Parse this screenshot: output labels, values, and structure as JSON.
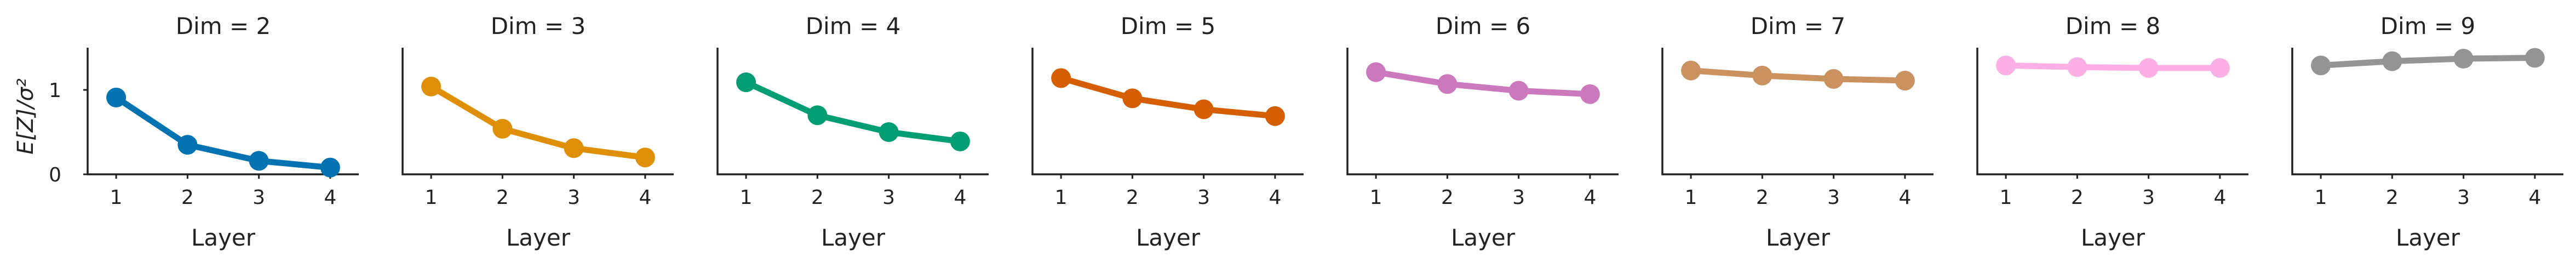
{
  "chart_data": {
    "type": "line",
    "ylabel": "E[Z]/σ²",
    "ylabel_tex": "E[Z]/σ²",
    "yticks": [
      "0",
      "1"
    ],
    "ylim": [
      0,
      1.5
    ],
    "xlim": [
      0.6,
      4.4
    ],
    "grid": false,
    "legend": "none",
    "panels": [
      {
        "title": "Dim = 2",
        "xlabel": "Layer",
        "x": [
          "1",
          "2",
          "3",
          "4"
        ],
        "values": [
          0.91,
          0.35,
          0.16,
          0.08
        ],
        "color": "#0173b2"
      },
      {
        "title": "Dim = 3",
        "xlabel": "Layer",
        "x": [
          "1",
          "2",
          "3",
          "4"
        ],
        "values": [
          1.04,
          0.54,
          0.31,
          0.2
        ],
        "color": "#de8f05"
      },
      {
        "title": "Dim = 4",
        "xlabel": "Layer",
        "x": [
          "1",
          "2",
          "3",
          "4"
        ],
        "values": [
          1.09,
          0.7,
          0.5,
          0.39
        ],
        "color": "#029e73"
      },
      {
        "title": "Dim = 5",
        "xlabel": "Layer",
        "x": [
          "1",
          "2",
          "3",
          "4"
        ],
        "values": [
          1.14,
          0.9,
          0.77,
          0.69
        ],
        "color": "#d55e00"
      },
      {
        "title": "Dim = 6",
        "xlabel": "Layer",
        "x": [
          "1",
          "2",
          "3",
          "4"
        ],
        "values": [
          1.21,
          1.07,
          0.99,
          0.95
        ],
        "color": "#cc78bc"
      },
      {
        "title": "Dim = 7",
        "xlabel": "Layer",
        "x": [
          "1",
          "2",
          "3",
          "4"
        ],
        "values": [
          1.23,
          1.17,
          1.13,
          1.11
        ],
        "color": "#ca9161"
      },
      {
        "title": "Dim = 8",
        "xlabel": "Layer",
        "x": [
          "1",
          "2",
          "3",
          "4"
        ],
        "values": [
          1.29,
          1.27,
          1.26,
          1.26
        ],
        "color": "#fbafe4"
      },
      {
        "title": "Dim = 9",
        "xlabel": "Layer",
        "x": [
          "1",
          "2",
          "3",
          "4"
        ],
        "values": [
          1.29,
          1.34,
          1.37,
          1.38
        ],
        "color": "#949494"
      }
    ]
  }
}
